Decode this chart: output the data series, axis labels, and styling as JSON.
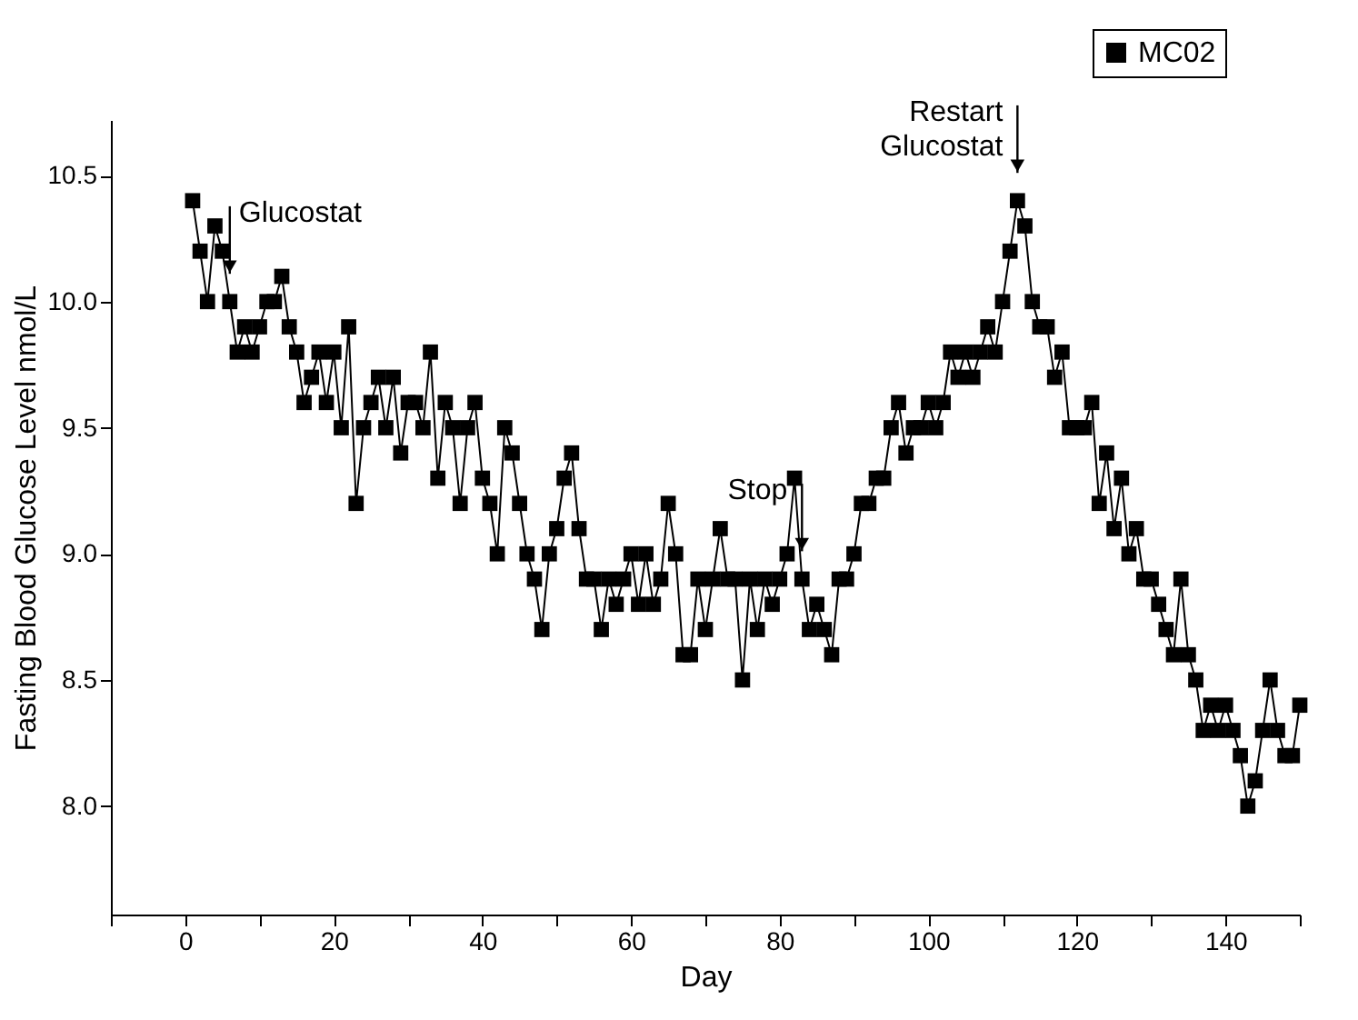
{
  "chart_data": {
    "type": "line",
    "xlabel": "Day",
    "ylabel": "Fasting Blood Glucose Level nmol/L",
    "x": [
      1,
      2,
      3,
      4,
      5,
      6,
      7,
      8,
      9,
      10,
      11,
      12,
      13,
      14,
      15,
      16,
      17,
      18,
      19,
      20,
      21,
      22,
      23,
      24,
      25,
      26,
      27,
      28,
      29,
      30,
      31,
      32,
      33,
      34,
      35,
      36,
      37,
      38,
      39,
      40,
      41,
      42,
      43,
      44,
      45,
      46,
      47,
      48,
      49,
      50,
      51,
      52,
      53,
      54,
      55,
      56,
      57,
      58,
      59,
      60,
      61,
      62,
      63,
      64,
      65,
      66,
      67,
      68,
      69,
      70,
      71,
      72,
      73,
      74,
      75,
      76,
      77,
      78,
      79,
      80,
      81,
      82,
      83,
      84,
      85,
      86,
      87,
      88,
      89,
      90,
      91,
      92,
      93,
      94,
      95,
      96,
      97,
      98,
      99,
      100,
      101,
      102,
      103,
      104,
      105,
      106,
      107,
      108,
      109,
      110,
      111,
      112,
      113,
      114,
      115,
      116,
      117,
      118,
      119,
      120,
      121,
      122,
      123,
      124,
      125,
      126,
      127,
      128,
      129,
      130,
      131,
      132,
      133,
      134,
      135,
      136,
      137,
      138,
      139,
      140,
      141,
      142,
      143,
      144,
      145,
      146,
      147,
      148,
      149,
      150
    ],
    "series": [
      {
        "name": "MC02",
        "color": "#000000",
        "values": [
          10.4,
          10.2,
          10.0,
          10.3,
          10.2,
          10.0,
          9.8,
          9.9,
          9.8,
          9.9,
          10.0,
          10.0,
          10.1,
          9.9,
          9.8,
          9.6,
          9.7,
          9.8,
          9.6,
          9.8,
          9.5,
          9.9,
          9.2,
          9.5,
          9.6,
          9.7,
          9.5,
          9.7,
          9.4,
          9.6,
          9.6,
          9.5,
          9.8,
          9.3,
          9.6,
          9.5,
          9.2,
          9.5,
          9.6,
          9.3,
          9.2,
          9.0,
          9.5,
          9.4,
          9.2,
          9.0,
          8.9,
          8.7,
          9.0,
          9.1,
          9.3,
          9.4,
          9.1,
          8.9,
          8.9,
          8.7,
          8.9,
          8.8,
          8.9,
          9.0,
          8.8,
          9.0,
          8.8,
          8.9,
          9.2,
          9.0,
          8.6,
          8.6,
          8.9,
          8.7,
          8.9,
          9.1,
          8.9,
          8.9,
          8.5,
          8.9,
          8.7,
          8.9,
          8.8,
          8.9,
          9.0,
          9.3,
          8.9,
          8.7,
          8.8,
          8.7,
          8.6,
          8.9,
          8.9,
          9.0,
          9.2,
          9.2,
          9.3,
          9.3,
          9.5,
          9.6,
          9.4,
          9.5,
          9.5,
          9.6,
          9.5,
          9.6,
          9.8,
          9.7,
          9.8,
          9.7,
          9.8,
          9.9,
          9.8,
          10.0,
          10.2,
          10.4,
          10.3,
          10.0,
          9.9,
          9.9,
          9.7,
          9.8,
          9.5,
          9.5,
          9.5,
          9.6,
          9.2,
          9.4,
          9.1,
          9.3,
          9.0,
          9.1,
          8.9,
          8.9,
          8.8,
          8.7,
          8.6,
          8.9,
          8.6,
          8.5,
          8.3,
          8.4,
          8.3,
          8.4,
          8.3,
          8.2,
          8.0,
          8.1,
          8.3,
          8.5,
          8.3,
          8.2,
          8.2,
          8.4
        ]
      }
    ],
    "xlim": [
      -10,
      150
    ],
    "xticks": [
      {
        "value": -10,
        "label": null
      },
      0,
      {
        "value": 10,
        "label": null
      },
      20,
      {
        "value": 30,
        "label": null
      },
      40,
      {
        "value": 50,
        "label": null
      },
      60,
      {
        "value": 70,
        "label": null
      },
      80,
      {
        "value": 90,
        "label": null
      },
      100,
      {
        "value": 110,
        "label": null
      },
      120,
      {
        "value": 130,
        "label": null
      },
      140,
      {
        "value": 150,
        "label": null
      }
    ],
    "ylim": [
      7.57,
      10.72
    ],
    "yticks": [
      {
        "value": 8.0,
        "label": "8.0"
      },
      {
        "value": 8.5,
        "label": "8.5"
      },
      {
        "value": 9.0,
        "label": "9.0"
      },
      {
        "value": 9.5,
        "label": "9.5"
      },
      {
        "value": 10.0,
        "label": "10.0"
      },
      {
        "value": 10.5,
        "label": "10.5"
      }
    ],
    "marker": "square",
    "line_style": "solid",
    "grid": false,
    "legend": "top right",
    "annotations": [
      {
        "text": "Glucostat",
        "x": 6,
        "y": 10.0
      },
      {
        "text": "Stop",
        "x": 83,
        "y": 8.9
      },
      {
        "text": "Restart\nGlucostat",
        "x": 112,
        "y": 10.4
      }
    ]
  }
}
